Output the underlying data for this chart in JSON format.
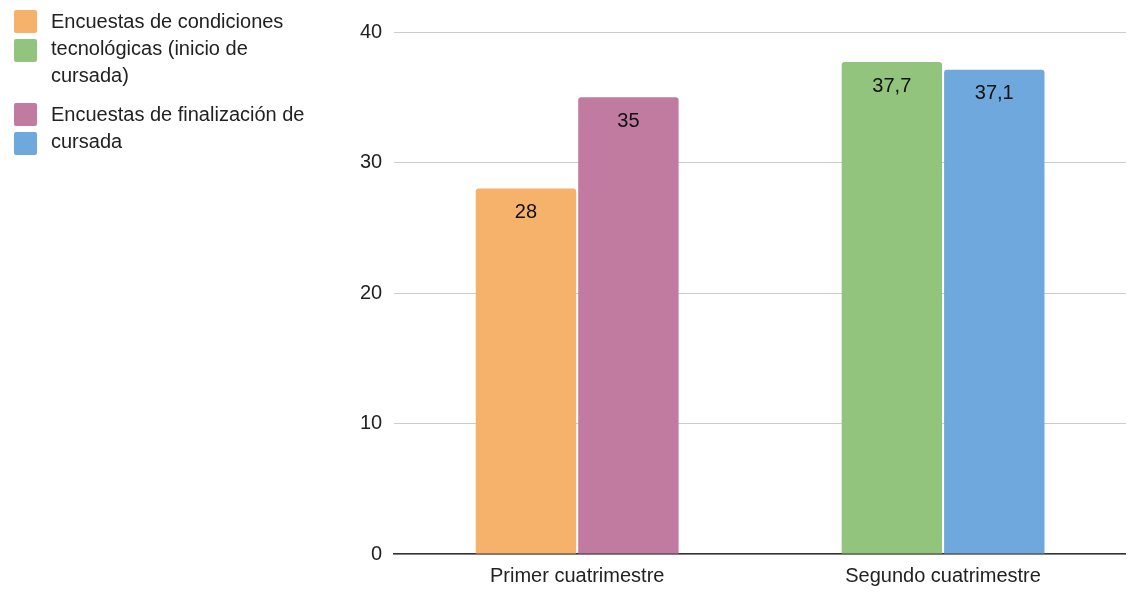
{
  "chart_data": {
    "type": "bar",
    "categories": [
      "Primer cuatrimestre",
      "Segundo cuatrimestre"
    ],
    "series": [
      {
        "name": "Encuestas de condiciones tecnológicas (inicio de cursada)",
        "colors": [
          "#f6b26b",
          "#93c47d"
        ],
        "values": [
          28,
          37.7
        ],
        "value_labels": [
          "28",
          "37,7"
        ]
      },
      {
        "name": "Encuestas de finalización de cursada",
        "colors": [
          "#c27ba0",
          "#6fa8dc"
        ],
        "values": [
          35,
          37.1
        ],
        "value_labels": [
          "35",
          "37,1"
        ]
      }
    ],
    "ylim": [
      0,
      40
    ],
    "yticks": [
      0,
      10,
      20,
      30,
      40
    ],
    "grid": "y",
    "legend": "top left"
  }
}
